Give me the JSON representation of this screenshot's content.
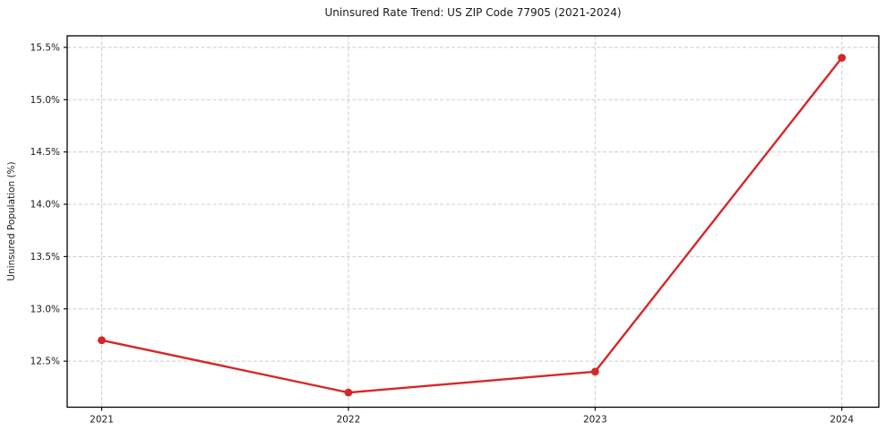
{
  "chart_data": {
    "type": "line",
    "title": "Uninsured Rate Trend: US ZIP Code 77905 (2021-2024)",
    "xlabel": "",
    "ylabel": "Uninsured Population (%)",
    "x": [
      2021,
      2022,
      2023,
      2024
    ],
    "values": [
      12.7,
      12.2,
      12.4,
      15.4
    ],
    "x_tick_labels": [
      "2021",
      "2022",
      "2023",
      "2024"
    ],
    "y_ticks": [
      12.5,
      13.0,
      13.5,
      14.0,
      14.5,
      15.0,
      15.5
    ],
    "y_tick_labels": [
      "12.5%",
      "13.0%",
      "13.5%",
      "14.0%",
      "14.5%",
      "15.0%",
      "15.5%"
    ],
    "xlim": [
      2020.86,
      2024.15
    ],
    "ylim": [
      12.06,
      15.61
    ],
    "grid": true,
    "grid_style": "dashed",
    "legend_position": "none",
    "marker": "circle",
    "colors": {
      "line": "#d62728",
      "marker": "#d62728",
      "grid": "#cccccc",
      "spine": "#000000",
      "text": "#1a1a1a",
      "background": "#ffffff"
    }
  }
}
